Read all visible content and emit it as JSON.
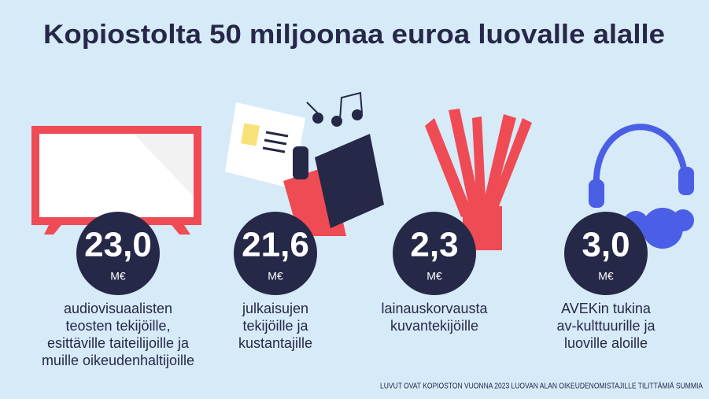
{
  "title": "Kopiostolta 50 miljoonaa euroa luovalle alalle",
  "items": [
    {
      "value": "23,0",
      "unit": "M€",
      "lines": [
        "audiovisuaalisten",
        "teosten tekijöille,",
        "esittäville taiteilijoille ja",
        "muille oikeudenhaltijoille"
      ]
    },
    {
      "value": "21,6",
      "unit": "M€",
      "lines": [
        "julkaisujen",
        "tekijöille ja",
        "kustantajille"
      ]
    },
    {
      "value": "2,3",
      "unit": "M€",
      "lines": [
        "lainauskorvausta",
        "kuvantekijöille"
      ]
    },
    {
      "value": "3,0",
      "unit": "M€",
      "lines": [
        "AVEKin tukina",
        "av-kulttuurille ja",
        "luoville aloille"
      ]
    }
  ],
  "footnote": "LUVUT OVAT KOPIOSTON VUONNA 2023 LUOVAN ALAN OIKEUDENOMISTAJILLE TILITTÄMIÄ SUMMIA"
}
